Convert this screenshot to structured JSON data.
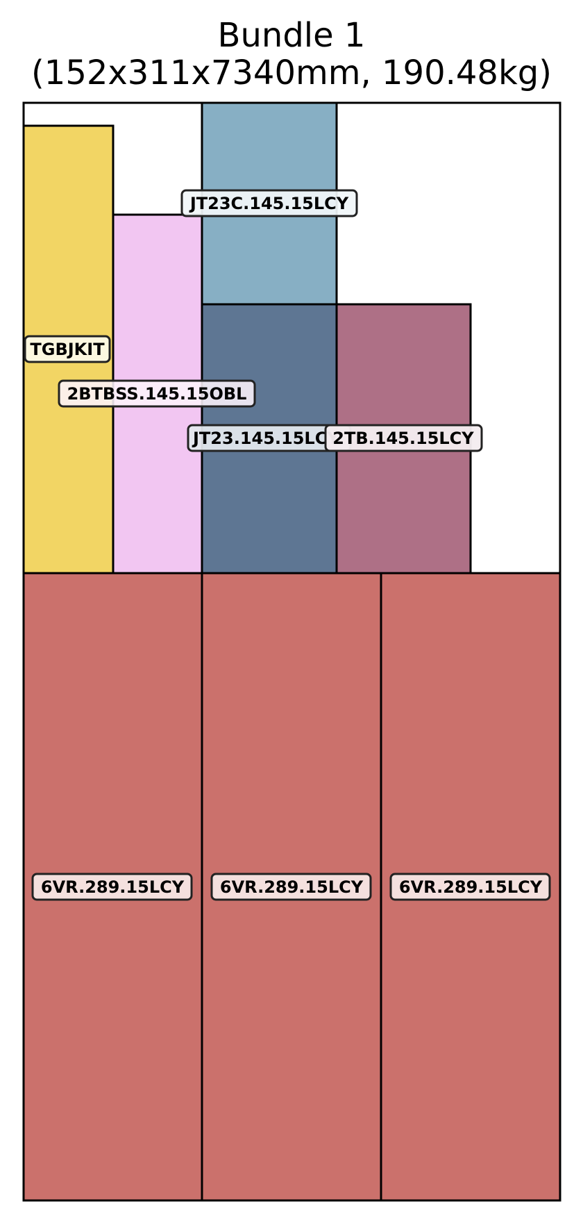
{
  "diagram": {
    "title_line1": "Bundle 1",
    "title_line2": "(152x311x7340mm, 190.48kg)",
    "pieces": [
      {
        "id": "tgbjkit",
        "label": "TGBJKIT",
        "color": "#f2d564"
      },
      {
        "id": "2btbss",
        "label": "2BTBSS.145.15OBL",
        "color": "#f2c6f2"
      },
      {
        "id": "jt23c",
        "label": "JT23C.145.15LCY",
        "color": "#87afc4"
      },
      {
        "id": "jt23",
        "label": "JT23.145.15LCY",
        "color": "#5e7693"
      },
      {
        "id": "2tb",
        "label": "2TB.145.15LCY",
        "color": "#ae7086"
      },
      {
        "id": "6vr-1",
        "label": "6VR.289.15LCY",
        "color": "#cb716c"
      },
      {
        "id": "6vr-2",
        "label": "6VR.289.15LCY",
        "color": "#cb716c"
      },
      {
        "id": "6vr-3",
        "label": "6VR.289.15LCY",
        "color": "#cb716c"
      }
    ]
  }
}
